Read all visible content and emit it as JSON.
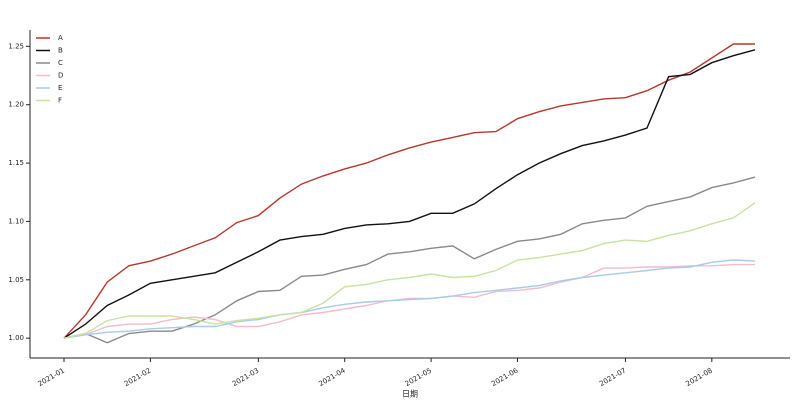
{
  "chart_data": {
    "type": "line",
    "x_label": "日期",
    "categories": [
      "2021-01",
      null,
      null,
      null,
      "2021-02",
      null,
      null,
      null,
      null,
      "2021-03",
      null,
      null,
      null,
      "2021-04",
      null,
      null,
      null,
      "2021-05",
      null,
      null,
      null,
      "2021-06",
      null,
      null,
      null,
      null,
      "2021-07",
      null,
      null,
      null,
      "2021-08",
      null,
      null
    ],
    "series": [
      {
        "name": "A",
        "color": "#b5382e",
        "values": [
          1.0,
          1.02,
          1.048,
          1.062,
          1.066,
          1.072,
          1.079,
          1.086,
          1.099,
          1.105,
          1.12,
          1.132,
          1.139,
          1.145,
          1.15,
          1.157,
          1.163,
          1.168,
          1.172,
          1.176,
          1.177,
          1.188,
          1.194,
          1.199,
          1.202,
          1.205,
          1.206,
          1.212,
          1.221,
          1.228,
          1.24,
          1.252,
          1.252
        ]
      },
      {
        "name": "B",
        "color": "#111111",
        "values": [
          1.0,
          1.012,
          1.028,
          1.037,
          1.047,
          1.05,
          1.053,
          1.056,
          1.065,
          1.074,
          1.084,
          1.087,
          1.089,
          1.094,
          1.097,
          1.098,
          1.1,
          1.107,
          1.107,
          1.115,
          1.128,
          1.14,
          1.15,
          1.158,
          1.165,
          1.169,
          1.174,
          1.18,
          1.224,
          1.226,
          1.236,
          1.242,
          1.247
        ]
      },
      {
        "name": "C",
        "color": "#8a8a8a",
        "values": [
          1.0,
          1.004,
          0.996,
          1.004,
          1.006,
          1.006,
          1.012,
          1.02,
          1.032,
          1.04,
          1.041,
          1.053,
          1.054,
          1.059,
          1.063,
          1.072,
          1.074,
          1.077,
          1.079,
          1.068,
          1.076,
          1.083,
          1.085,
          1.089,
          1.098,
          1.101,
          1.103,
          1.113,
          1.117,
          1.121,
          1.129,
          1.133,
          1.138
        ]
      },
      {
        "name": "D",
        "color": "#f2bccb",
        "values": [
          1.0,
          1.003,
          1.01,
          1.012,
          1.012,
          1.016,
          1.018,
          1.016,
          1.01,
          1.01,
          1.014,
          1.02,
          1.022,
          1.025,
          1.028,
          1.032,
          1.034,
          1.034,
          1.036,
          1.035,
          1.04,
          1.041,
          1.043,
          1.048,
          1.052,
          1.06,
          1.06,
          1.061,
          1.061,
          1.062,
          1.062,
          1.063,
          1.063
        ]
      },
      {
        "name": "E",
        "color": "#a9cbe8",
        "values": [
          1.0,
          1.003,
          1.005,
          1.006,
          1.008,
          1.009,
          1.01,
          1.01,
          1.014,
          1.016,
          1.02,
          1.022,
          1.026,
          1.029,
          1.031,
          1.032,
          1.033,
          1.034,
          1.036,
          1.039,
          1.041,
          1.043,
          1.045,
          1.049,
          1.052,
          1.054,
          1.056,
          1.058,
          1.06,
          1.061,
          1.065,
          1.067,
          1.066
        ]
      },
      {
        "name": "F",
        "color": "#c8e2a2",
        "values": [
          1.0,
          1.004,
          1.015,
          1.019,
          1.019,
          1.019,
          1.016,
          1.012,
          1.015,
          1.017,
          1.02,
          1.022,
          1.03,
          1.044,
          1.046,
          1.05,
          1.052,
          1.055,
          1.052,
          1.053,
          1.058,
          1.067,
          1.069,
          1.072,
          1.075,
          1.081,
          1.084,
          1.083,
          1.088,
          1.092,
          1.098,
          1.103,
          1.116
        ]
      }
    ],
    "ylim": [
      0.983,
      1.264
    ],
    "yticks": [
      {
        "value": 1.0,
        "label": "1.00"
      },
      1.05,
      {
        "value": 1.1,
        "label": "1.10"
      },
      1.15,
      {
        "value": 1.2,
        "label": "1.20"
      },
      1.25
    ],
    "grid": false,
    "legend": "upper left"
  }
}
